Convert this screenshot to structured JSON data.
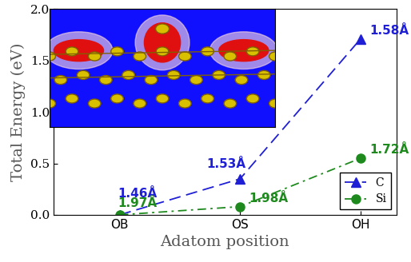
{
  "chart_data": {
    "type": "line",
    "x_label": "Adatom position",
    "y_label": "Total Energy (eV)",
    "categories": [
      "OB",
      "OS",
      "OH"
    ],
    "series": [
      {
        "name": "C",
        "color": "#1f1fd6",
        "marker": "triangle",
        "line_style": "dashed",
        "values": [
          0.0,
          0.35,
          1.71
        ],
        "annotations": [
          "1.46Å",
          "1.53Å",
          "1.58Å"
        ]
      },
      {
        "name": "Si",
        "color": "#1e8a1e",
        "marker": "circle",
        "line_style": "dashdot",
        "values": [
          0.0,
          0.08,
          0.55
        ],
        "annotations": [
          "1.97Å",
          "1.98Å",
          "1.72Å"
        ]
      }
    ],
    "ylim": [
      0.0,
      2.0
    ],
    "yticks": [
      0.0,
      0.5,
      1.0,
      1.5,
      2.0
    ],
    "legend": "lower right"
  }
}
